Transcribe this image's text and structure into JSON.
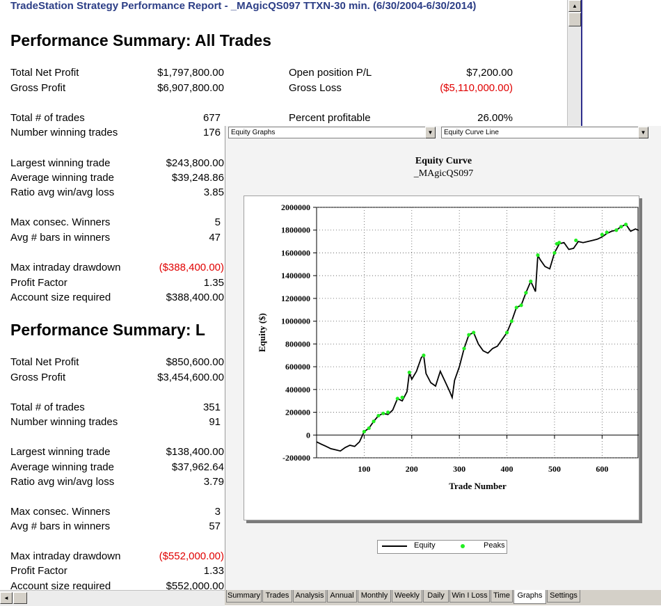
{
  "report": {
    "title": "TradeStation  Strategy Performance Report - _MAgicQS097 TTXN-30 min. (6/30/2004-6/30/2014)",
    "all_trades": {
      "heading": "Performance Summary:  All Trades",
      "left": [
        {
          "label": "Total Net Profit",
          "value": "$1,797,800.00"
        },
        {
          "label": "Gross Profit",
          "value": "$6,907,800.00"
        },
        {
          "label": "Total # of trades",
          "value": "677"
        },
        {
          "label": "Number winning trades",
          "value": "176"
        },
        {
          "label": "Largest winning trade",
          "value": "$243,800.00"
        },
        {
          "label": "Average winning trade",
          "value": "$39,248.86"
        },
        {
          "label": "Ratio avg win/avg loss",
          "value": "3.85"
        },
        {
          "label": "Max consec. Winners",
          "value": "5"
        },
        {
          "label": "Avg # bars in winners",
          "value": "47"
        },
        {
          "label": "Max intraday drawdown",
          "value": "($388,400.00)"
        },
        {
          "label": "Profit Factor",
          "value": "1.35"
        },
        {
          "label": "Account size required",
          "value": "$388,400.00"
        }
      ],
      "right": [
        {
          "label": "Open position P/L",
          "value": "$7,200.00"
        },
        {
          "label": "Gross Loss",
          "value": "($5,110,000.00)"
        },
        {
          "label": "Percent profitable",
          "value": "26.00%"
        }
      ]
    },
    "long_trades": {
      "heading": "Performance Summary:  L",
      "left": [
        {
          "label": "Total Net Profit",
          "value": "$850,600.00"
        },
        {
          "label": "Gross Profit",
          "value": "$3,454,600.00"
        },
        {
          "label": "Total # of trades",
          "value": "351"
        },
        {
          "label": "Number winning trades",
          "value": "91"
        },
        {
          "label": "Largest winning trade",
          "value": "$138,400.00"
        },
        {
          "label": "Average winning trade",
          "value": "$37,962.64"
        },
        {
          "label": "Ratio avg win/avg loss",
          "value": "3.79"
        },
        {
          "label": "Max consec. Winners",
          "value": "3"
        },
        {
          "label": "Avg # bars in winners",
          "value": "57"
        },
        {
          "label": "Max intraday drawdown",
          "value": "($552,000.00)"
        },
        {
          "label": "Profit Factor",
          "value": "1.33"
        },
        {
          "label": "Account size required",
          "value": "$552,000.00"
        }
      ]
    }
  },
  "graph_panel": {
    "graph_type_select": "Equity Graphs",
    "graph_style_select": "Equity Curve Line"
  },
  "tabs": [
    "Summary",
    "Trades",
    "Analysis",
    "Annual",
    "Monthly",
    "Weekly",
    "Daily",
    "Win I Loss",
    "Time",
    "Graphs",
    "Settings"
  ],
  "active_tab": "Graphs",
  "colors": {
    "title": "#2c3e86",
    "negative": "#e00000",
    "equity_line": "#000000",
    "peaks": "#22ee22"
  },
  "chart_data": {
    "type": "line",
    "title": "Equity Curve",
    "subtitle": "_MAgicQS097",
    "xlabel": "Trade Number",
    "ylabel": "Equity ($)",
    "xlim": [
      0,
      677
    ],
    "ylim": [
      -200000,
      2000000
    ],
    "xticks": [
      100,
      200,
      300,
      400,
      500,
      600
    ],
    "yticks": [
      -200000,
      0,
      200000,
      400000,
      600000,
      800000,
      1000000,
      1200000,
      1400000,
      1600000,
      1800000,
      2000000
    ],
    "ytick_labels": [
      "-200000",
      "0",
      "200000",
      "400000",
      "600000",
      "800000",
      "1000000",
      "1200000",
      "1400000",
      "1600000",
      "1800000",
      "2000000"
    ],
    "grid": true,
    "legend_position": "bottom",
    "series": [
      {
        "name": "Equity",
        "x": [
          0,
          10,
          20,
          30,
          40,
          50,
          60,
          70,
          80,
          90,
          100,
          110,
          120,
          130,
          140,
          150,
          160,
          170,
          180,
          190,
          195,
          200,
          210,
          220,
          225,
          230,
          240,
          250,
          260,
          270,
          280,
          285,
          290,
          300,
          310,
          320,
          330,
          340,
          350,
          360,
          370,
          380,
          390,
          400,
          410,
          420,
          430,
          440,
          450,
          460,
          465,
          470,
          480,
          490,
          500,
          510,
          520,
          530,
          540,
          550,
          560,
          570,
          580,
          590,
          600,
          610,
          620,
          630,
          640,
          650,
          660,
          670,
          677
        ],
        "y": [
          -60000,
          -80000,
          -100000,
          -120000,
          -130000,
          -140000,
          -110000,
          -90000,
          -100000,
          -60000,
          30000,
          60000,
          120000,
          170000,
          190000,
          180000,
          220000,
          320000,
          300000,
          380000,
          550000,
          490000,
          560000,
          680000,
          700000,
          540000,
          460000,
          430000,
          560000,
          470000,
          380000,
          330000,
          480000,
          600000,
          760000,
          880000,
          900000,
          800000,
          740000,
          720000,
          760000,
          780000,
          840000,
          900000,
          1000000,
          1120000,
          1140000,
          1250000,
          1350000,
          1260000,
          1580000,
          1540000,
          1480000,
          1460000,
          1600000,
          1680000,
          1690000,
          1630000,
          1640000,
          1700000,
          1690000,
          1700000,
          1710000,
          1720000,
          1740000,
          1770000,
          1790000,
          1800000,
          1830000,
          1850000,
          1790000,
          1810000,
          1797800
        ]
      },
      {
        "name": "Peaks",
        "x": [
          100,
          110,
          120,
          130,
          140,
          150,
          170,
          180,
          195,
          225,
          310,
          320,
          330,
          400,
          410,
          420,
          430,
          440,
          450,
          465,
          500,
          505,
          510,
          545,
          600,
          610,
          630,
          640,
          650
        ],
        "y": [
          30000,
          60000,
          120000,
          170000,
          190000,
          200000,
          320000,
          330000,
          550000,
          700000,
          760000,
          880000,
          900000,
          900000,
          1000000,
          1120000,
          1140000,
          1250000,
          1350000,
          1580000,
          1600000,
          1680000,
          1690000,
          1710000,
          1760000,
          1780000,
          1800000,
          1830000,
          1850000
        ]
      }
    ]
  }
}
